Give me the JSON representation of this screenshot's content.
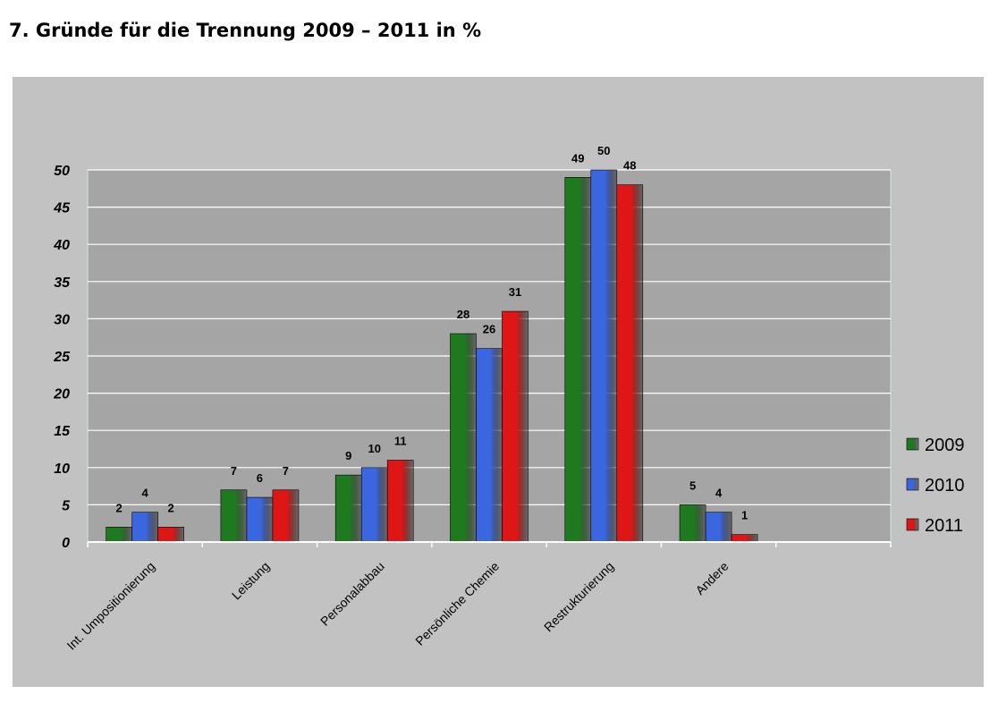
{
  "title": "7.  Gründe für die Trennung 2009 – 2011 in %",
  "colors": {
    "panel": "#c2c2c2",
    "plot": "#a5a5a5",
    "grid": "#ffffff"
  },
  "chart_data": {
    "type": "bar",
    "categories": [
      "Int. Umpositionierung",
      "Leistung",
      "Personalabbau",
      "Persönliche Chemie",
      "Restrukturierung",
      "Andere",
      ""
    ],
    "series": [
      {
        "name": "2009",
        "color": "#1f7a1f",
        "values": [
          2,
          7,
          9,
          28,
          49,
          5,
          null
        ]
      },
      {
        "name": "2010",
        "color": "#3a66e0",
        "values": [
          4,
          6,
          10,
          26,
          50,
          4,
          null
        ]
      },
      {
        "name": "2011",
        "color": "#e01515",
        "values": [
          2,
          7,
          11,
          31,
          48,
          1,
          null
        ]
      }
    ],
    "yticks": [
      "0",
      "5",
      "10",
      "15",
      "20",
      "25",
      "30",
      "35",
      "40",
      "45",
      "50"
    ],
    "ylim": [
      0,
      50
    ],
    "grid": true,
    "legend_position": "right"
  }
}
